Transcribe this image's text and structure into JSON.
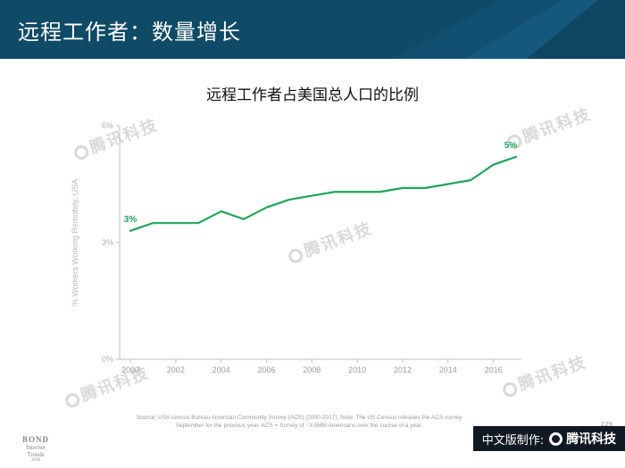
{
  "header": {
    "title": "远程工作者：数量增长"
  },
  "watermark": "腾讯科技",
  "chart_data": {
    "type": "line",
    "title": "远程工作者占美国总人口的比例",
    "ylabel": "% Workers Working Remotely, USA",
    "xlabel": "",
    "x": [
      2000,
      2001,
      2002,
      2003,
      2004,
      2005,
      2006,
      2007,
      2008,
      2009,
      2010,
      2011,
      2012,
      2013,
      2014,
      2015,
      2016,
      2017
    ],
    "series": [
      {
        "values": [
          3.3,
          3.5,
          3.5,
          3.5,
          3.8,
          3.6,
          3.9,
          4.1,
          4.2,
          4.3,
          4.3,
          4.3,
          4.4,
          4.4,
          4.5,
          4.6,
          5.0,
          5.2
        ],
        "color": "#21a45a"
      }
    ],
    "xticks": [
      "2000",
      "2002",
      "2004",
      "2006",
      "2008",
      "2010",
      "2012",
      "2014",
      "2016"
    ],
    "yticks": [
      "0%",
      "3%",
      "6%"
    ],
    "ylim": [
      0,
      6
    ],
    "xlim": [
      2000,
      2017
    ],
    "grid": false,
    "annotations": [
      {
        "text": "3%",
        "x": 2000,
        "y": 3.3
      },
      {
        "text": "5%",
        "x": 2017,
        "y": 5.2
      }
    ]
  },
  "footer": {
    "source_line1": "Source: USA census Bureau American Community Survey (ACS) (2000-2017).  Note: The US Census releases the ACS survey",
    "source_line2": "September for the previous year.  ACS = Survey of ~3.5MM Americans over the course of a year.",
    "bond_line1": "BOND",
    "bond_line2": "Internet Trends",
    "bond_line3": "2018",
    "page_number": "229",
    "badge_prefix": "中文版制作:",
    "badge_brand": "腾讯科技"
  },
  "colors": {
    "header_bg": "#0f4a66",
    "line": "#21a45a",
    "axis": "#bfbfbf"
  }
}
